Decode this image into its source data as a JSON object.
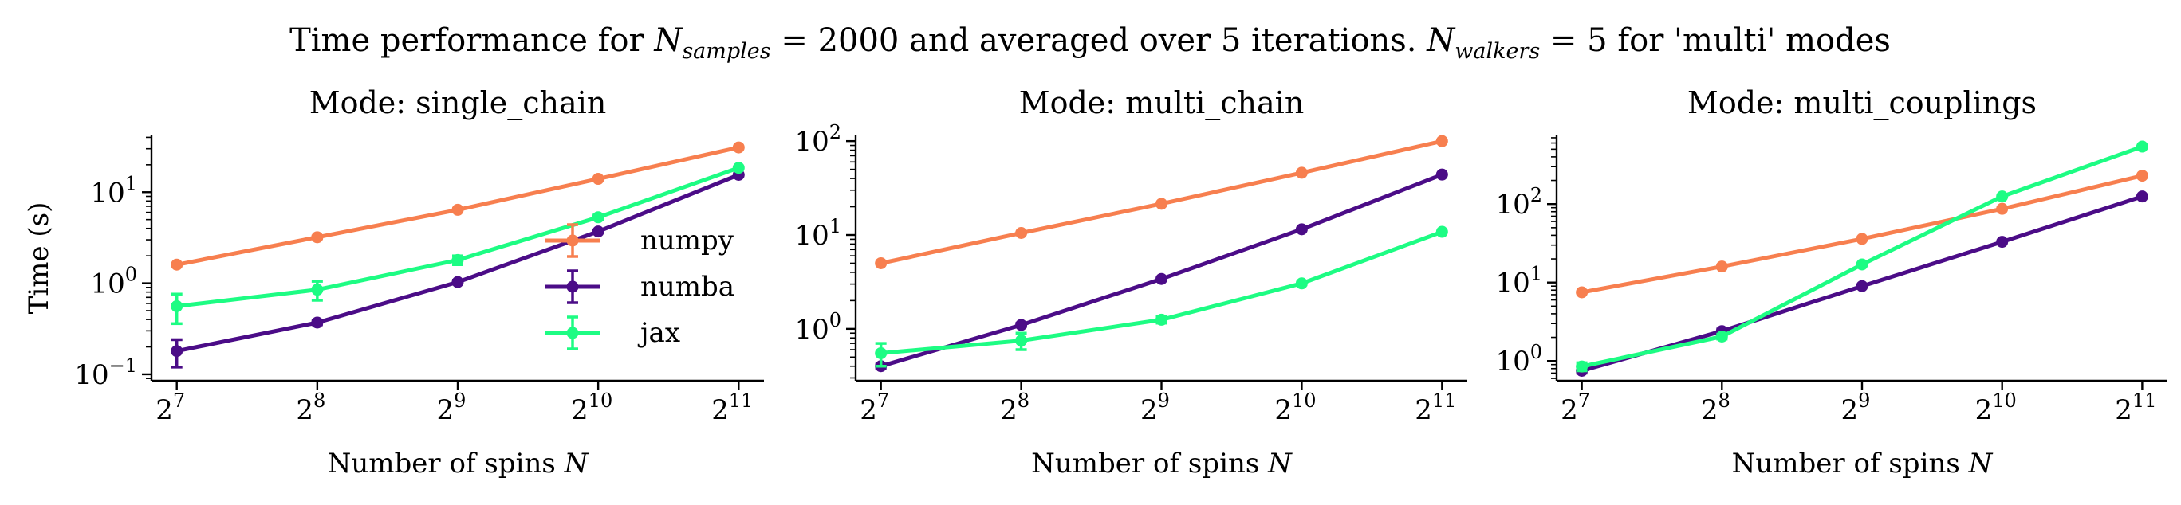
{
  "figure": {
    "suptitle_prefix": "Time performance for ",
    "suptitle_n1_main": "N",
    "suptitle_n1_sub": "samples",
    "suptitle_middle": " = 2000 and averaged over 5 iterations. ",
    "suptitle_n2_main": "N",
    "suptitle_n2_sub": "walkers",
    "suptitle_suffix": " = 5 for 'multi' modes"
  },
  "colors": {
    "numpy": "#f77f4f",
    "numba": "#4b0c87",
    "jax": "#1dfc83"
  },
  "chart_data": [
    {
      "type": "line",
      "title": "Mode: single_chain",
      "xlabel": "Number of spins N",
      "ylabel": "Time (s)",
      "x_scale": "log2",
      "y_scale": "log10",
      "x": [
        128,
        256,
        512,
        1024,
        2048
      ],
      "x_tick_labels": [
        "2^7",
        "2^8",
        "2^9",
        "2^10",
        "2^11"
      ],
      "ylim": [
        0.085,
        42
      ],
      "y_ticks": [
        0.1,
        1,
        10
      ],
      "y_tick_labels": [
        "10^-1",
        "10^0",
        "10^1"
      ],
      "legend": {
        "position": "center-right",
        "entries": [
          "numpy",
          "numba",
          "jax"
        ]
      },
      "series": [
        {
          "name": "numpy",
          "values": [
            1.6,
            3.2,
            6.4,
            14.0,
            31.0
          ],
          "err": [
            0.05,
            0.1,
            0.2,
            0.3,
            0.6
          ]
        },
        {
          "name": "numba",
          "values": [
            0.18,
            0.37,
            1.03,
            3.7,
            15.5
          ],
          "err": [
            0.06,
            0.02,
            0.05,
            0.1,
            0.3
          ]
        },
        {
          "name": "jax",
          "values": [
            0.56,
            0.85,
            1.8,
            5.3,
            18.5
          ],
          "err": [
            0.2,
            0.2,
            0.2,
            0.3,
            0.4
          ]
        }
      ]
    },
    {
      "type": "line",
      "title": "Mode: multi_chain",
      "xlabel": "Number of spins N",
      "ylabel": "",
      "x_scale": "log2",
      "y_scale": "log10",
      "x": [
        128,
        256,
        512,
        1024,
        2048
      ],
      "x_tick_labels": [
        "2^7",
        "2^8",
        "2^9",
        "2^10",
        "2^11"
      ],
      "ylim": [
        0.28,
        115
      ],
      "y_ticks": [
        1,
        10,
        100
      ],
      "y_tick_labels": [
        "10^0",
        "10^1",
        "10^2"
      ],
      "series": [
        {
          "name": "numpy",
          "values": [
            5.0,
            10.5,
            21.5,
            46.0,
            100.0
          ],
          "err": [
            0.1,
            0.2,
            0.4,
            0.8,
            1.5
          ]
        },
        {
          "name": "numba",
          "values": [
            0.4,
            1.1,
            3.4,
            11.5,
            44.0
          ],
          "err": [
            0.02,
            0.05,
            0.1,
            0.3,
            1.0
          ]
        },
        {
          "name": "jax",
          "values": [
            0.55,
            0.75,
            1.25,
            3.05,
            10.8
          ],
          "err": [
            0.15,
            0.15,
            0.1,
            0.1,
            0.3
          ]
        }
      ]
    },
    {
      "type": "line",
      "title": "Mode: multi_couplings",
      "xlabel": "Number of spins N",
      "ylabel": "",
      "x_scale": "log2",
      "y_scale": "log10",
      "x": [
        128,
        256,
        512,
        1024,
        2048
      ],
      "x_tick_labels": [
        "2^7",
        "2^8",
        "2^9",
        "2^10",
        "2^11"
      ],
      "ylim": [
        0.56,
        750
      ],
      "y_ticks": [
        1,
        10,
        100
      ],
      "y_tick_labels": [
        "10^0",
        "10^1",
        "10^2"
      ],
      "series": [
        {
          "name": "numpy",
          "values": [
            7.5,
            16.0,
            36.0,
            87.0,
            230.0
          ],
          "err": [
            0.2,
            0.4,
            0.8,
            2.0,
            5.0
          ]
        },
        {
          "name": "numba",
          "values": [
            0.75,
            2.4,
            9.0,
            33.0,
            125.0
          ],
          "err": [
            0.05,
            0.15,
            0.2,
            0.8,
            3.0
          ]
        },
        {
          "name": "jax",
          "values": [
            0.85,
            2.05,
            17.0,
            125.0,
            540.0
          ],
          "err": [
            0.1,
            0.15,
            0.4,
            3.0,
            10.0
          ]
        }
      ]
    }
  ]
}
